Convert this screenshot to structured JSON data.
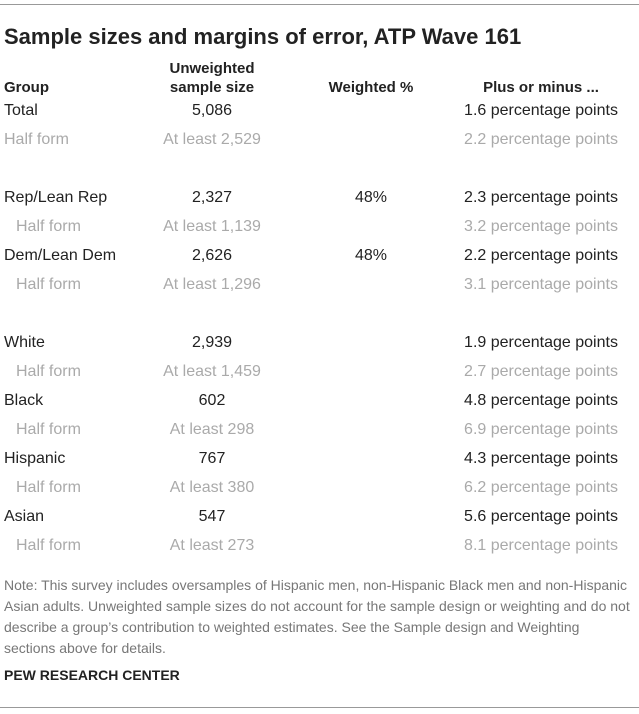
{
  "title": "Sample sizes and margins of error, ATP Wave 161",
  "table": {
    "headers": {
      "group": "Group",
      "unweighted": "Unweighted sample size",
      "weighted": "Weighted %",
      "margin": "Plus or minus ..."
    },
    "sections": [
      [
        {
          "group": "Total",
          "unweighted": "5,086",
          "margin": "1.6 percentage points"
        },
        {
          "group": "Half form",
          "unweighted": "At least 2,529",
          "margin": "2.2 percentage points"
        }
      ],
      [
        {
          "group": "Rep/Lean Rep",
          "unweighted": "2,327",
          "weighted": "48%",
          "margin": "2.3 percentage points"
        },
        {
          "group": "Half form",
          "unweighted": "At least 1,139",
          "margin": "3.2 percentage points"
        },
        {
          "group": "Dem/Lean Dem",
          "unweighted": "2,626",
          "weighted": "48%",
          "margin": "2.2 percentage points"
        },
        {
          "group": "Half form",
          "unweighted": "At least 1,296",
          "margin": "3.1 percentage points"
        }
      ],
      [
        {
          "group": "White",
          "unweighted": "2,939",
          "margin": "1.9 percentage points"
        },
        {
          "group": "Half form",
          "unweighted": "At least 1,459",
          "margin": "2.7 percentage points"
        },
        {
          "group": "Black",
          "unweighted": "602",
          "margin": "4.8 percentage points"
        },
        {
          "group": "Half form",
          "unweighted": "At least 298",
          "margin": "6.9 percentage points"
        },
        {
          "group": "Hispanic",
          "unweighted": "767",
          "margin": "4.3 percentage points"
        },
        {
          "group": "Half form",
          "unweighted": "At least 380",
          "margin": "6.2 percentage points"
        },
        {
          "group": "Asian",
          "unweighted": "547",
          "margin": "5.6 percentage points"
        },
        {
          "group": "Half form",
          "unweighted": "At least 273",
          "margin": "8.1 percentage points"
        }
      ]
    ]
  },
  "note": "Note: This survey includes oversamples of Hispanic men, non-Hispanic Black men and non-Hispanic Asian adults. Unweighted sample sizes do not account for the sample design or weighting and do not describe a group’s contribution to weighted estimates. See the Sample design and Weighting sections above for details.",
  "source": "PEW RESEARCH CENTER"
}
